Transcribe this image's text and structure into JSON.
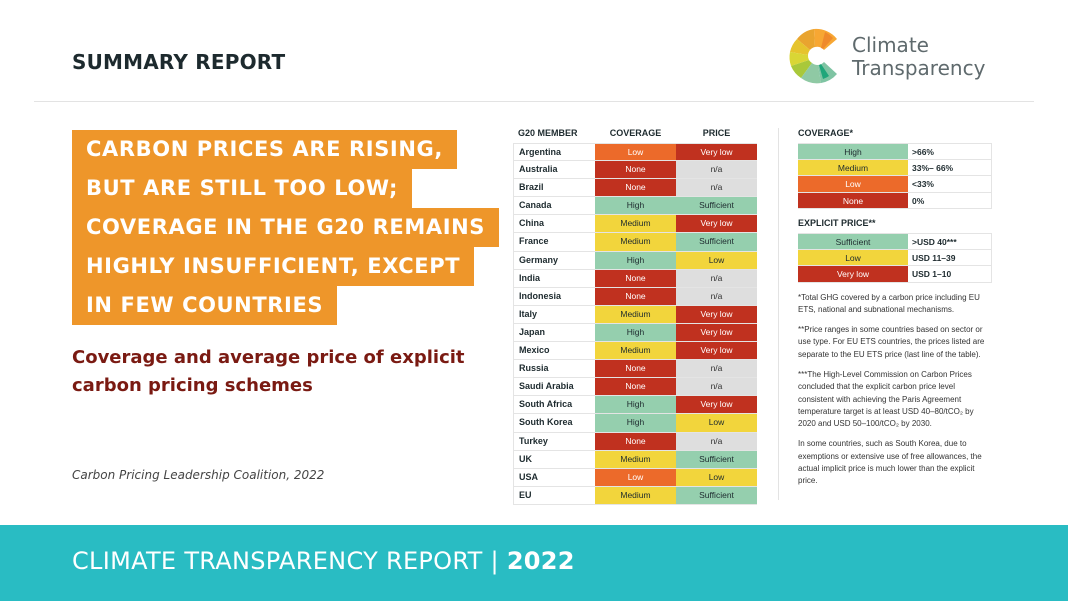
{
  "header": {
    "title": "SUMMARY REPORT",
    "logo_text_line1": "Climate",
    "logo_text_line2": "Transparency"
  },
  "headline": {
    "lines": [
      "CARBON PRICES ARE RISING,",
      "BUT ARE STILL TOO LOW;",
      "COVERAGE IN THE G20 REMAINS",
      "HIGHLY INSUFFICIENT, EXCEPT",
      "IN FEW COUNTRIES"
    ]
  },
  "subhead": "Coverage and average price of explicit carbon pricing schemes",
  "source": "Carbon Pricing Leadership Coalition, 2022",
  "colors": {
    "high": "#95cfae",
    "medium": "#f2d53c",
    "low_orange": "#ec6a2a",
    "none_red": "#c0311f",
    "na_grey": "#dedede",
    "accent_orange": "#ee962a",
    "footer_teal": "#29bcc3",
    "subhead_red": "#7a1a12"
  },
  "table": {
    "headers": [
      "G20 MEMBER",
      "COVERAGE",
      "PRICE"
    ],
    "rows": [
      {
        "country": "Argentina",
        "coverage": "Low",
        "price": "Very low"
      },
      {
        "country": "Australia",
        "coverage": "None",
        "price": "n/a"
      },
      {
        "country": "Brazil",
        "coverage": "None",
        "price": "n/a"
      },
      {
        "country": "Canada",
        "coverage": "High",
        "price": "Sufficient"
      },
      {
        "country": "China",
        "coverage": "Medium",
        "price": "Very low"
      },
      {
        "country": "France",
        "coverage": "Medium",
        "price": "Sufficient"
      },
      {
        "country": "Germany",
        "coverage": "High",
        "price": "Low"
      },
      {
        "country": "India",
        "coverage": "None",
        "price": "n/a"
      },
      {
        "country": "Indonesia",
        "coverage": "None",
        "price": "n/a"
      },
      {
        "country": "Italy",
        "coverage": "Medium",
        "price": "Very low"
      },
      {
        "country": "Japan",
        "coverage": "High",
        "price": "Very low"
      },
      {
        "country": "Mexico",
        "coverage": "Medium",
        "price": "Very low"
      },
      {
        "country": "Russia",
        "coverage": "None",
        "price": "n/a"
      },
      {
        "country": "Saudi Arabia",
        "coverage": "None",
        "price": "n/a"
      },
      {
        "country": "South Africa",
        "coverage": "High",
        "price": "Very low"
      },
      {
        "country": "South Korea",
        "coverage": "High",
        "price": "Low"
      },
      {
        "country": "Turkey",
        "coverage": "None",
        "price": "n/a"
      },
      {
        "country": "UK",
        "coverage": "Medium",
        "price": "Sufficient"
      },
      {
        "country": "USA",
        "coverage": "Low",
        "price": "Low"
      },
      {
        "country": "EU",
        "coverage": "Medium",
        "price": "Sufficient"
      }
    ]
  },
  "legend": {
    "coverage_title": "COVERAGE*",
    "coverage": [
      {
        "label": "High",
        "value": ">66%"
      },
      {
        "label": "Medium",
        "value": "33%– 66%"
      },
      {
        "label": "Low",
        "value": "<33%"
      },
      {
        "label": "None",
        "value": "0%"
      }
    ],
    "price_title": "EXPLICIT PRICE**",
    "price": [
      {
        "label": "Sufficient",
        "value": ">USD 40***"
      },
      {
        "label": "Low",
        "value": "USD 11–39"
      },
      {
        "label": "Very low",
        "value": "USD 1–10"
      }
    ]
  },
  "notes": [
    "*Total GHG covered by a carbon price including EU ETS, national and subnational mechanisms.",
    "**Price ranges in some countries based on sector or use type. For EU ETS countries, the prices listed are separate to the EU ETS price (last line of the table).",
    "***The High-Level Commission on Carbon Prices concluded that the explicit carbon price level consistent with achieving the Paris Agreement temperature target is at least USD 40–80/tCO₂ by 2020 and USD 50–100/tCO₂ by 2030.",
    "In some countries, such as South Korea, due to exemptions or extensive use of free allowances, the actual implicit price is much lower than the explicit price."
  ],
  "footer": {
    "text": "CLIMATE TRANSPARENCY REPORT | ",
    "year": "2022"
  }
}
